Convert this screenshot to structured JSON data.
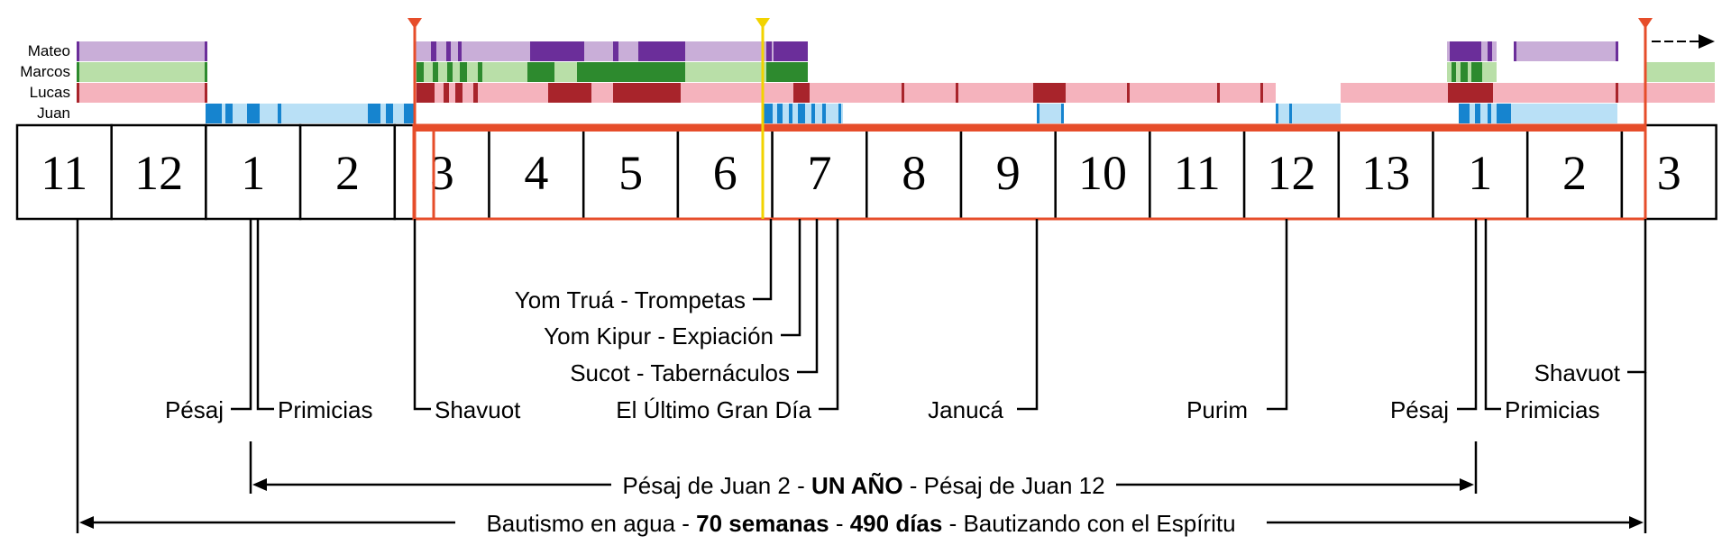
{
  "gospels": [
    {
      "name": "Mateo",
      "color": "#c9aed8",
      "dark": "#6b2e9a"
    },
    {
      "name": "Marcos",
      "color": "#b9dfa8",
      "dark": "#2d8a2e"
    },
    {
      "name": "Lucas",
      "color": "#f5b3bd",
      "dark": "#a8242b"
    },
    {
      "name": "Juan",
      "color": "#b9e0f6",
      "dark": "#1684cf"
    }
  ],
  "months": [
    "11",
    "12",
    "1",
    "2",
    "3",
    "4",
    "5",
    "6",
    "7",
    "8",
    "9",
    "10",
    "11",
    "12",
    "13",
    "1",
    "2",
    "3"
  ],
  "festivals": [
    {
      "label": "Pésaj",
      "month_index": 2,
      "stage": 3
    },
    {
      "label": "Primicias",
      "month_index": 2,
      "stage": 3
    },
    {
      "label": "Shavuot",
      "month_index": 4,
      "stage": 3
    },
    {
      "label": "Yom Truá - Trompetas",
      "month_index": 6,
      "stage": 0
    },
    {
      "label": "Yom Kipur - Expiación",
      "month_index": 7,
      "stage": 1
    },
    {
      "label": "Sucot - Tabernáculos",
      "month_index": 7,
      "stage": 2
    },
    {
      "label": "El Último Gran Día",
      "month_index": 7,
      "stage": 3
    },
    {
      "label": "Janucá",
      "month_index": 10,
      "stage": 3
    },
    {
      "label": "Purim",
      "month_index": 13,
      "stage": 3
    },
    {
      "label": "Pésaj",
      "month_index": 15,
      "stage": 3
    },
    {
      "label": "Primicias",
      "month_index": 15,
      "stage": 3
    },
    {
      "label": "Shavuot",
      "month_index": 17,
      "stage": 2
    }
  ],
  "spans": [
    {
      "parts": [
        {
          "text": "Pésaj de Juan 2 - ",
          "bold": false
        },
        {
          "text": "UN AÑO",
          "bold": true
        },
        {
          "text": " - Pésaj de Juan 12",
          "bold": false
        }
      ]
    },
    {
      "parts": [
        {
          "text": "Bautismo en agua - ",
          "bold": false
        },
        {
          "text": "70 semanas",
          "bold": true
        },
        {
          "text": " - ",
          "bold": false
        },
        {
          "text": "490 días",
          "bold": true
        },
        {
          "text": " - Bautizando con el Espíritu",
          "bold": false
        }
      ]
    }
  ],
  "colors": {
    "accent_red": "#e64d2a",
    "accent_yellow": "#f2d300",
    "line": "#000000"
  }
}
